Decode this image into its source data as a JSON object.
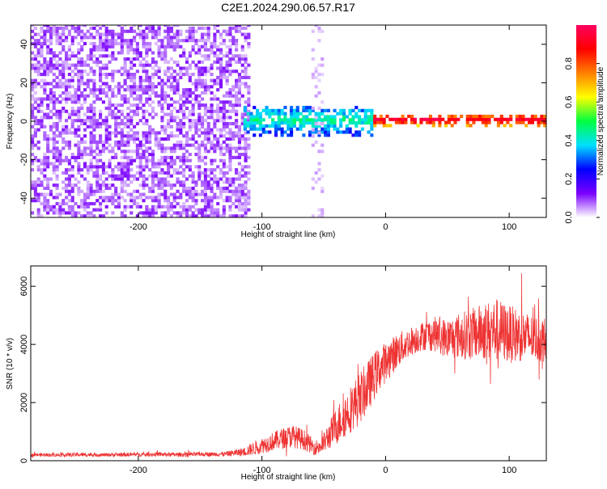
{
  "title": "C2E1.2024.290.06.57.R17",
  "chart_data": [
    {
      "type": "heatmap",
      "xlabel": "Height of straight line (km)",
      "ylabel": "Frequency (Hz)",
      "xlim": [
        -287,
        130
      ],
      "ylim": [
        -50,
        50
      ],
      "x_ticks": [
        -200,
        -100,
        0,
        100
      ],
      "x_tick_labels": [
        "-200",
        "-100",
        "0",
        "100"
      ],
      "y_ticks": [
        -40,
        -20,
        0,
        20,
        40
      ],
      "y_tick_labels": [
        "-40",
        "-20",
        "0",
        "20",
        "40"
      ],
      "colorbar": {
        "label": "Normalized spectral amplitude",
        "range": [
          0,
          1
        ],
        "ticks": [
          0.0,
          0.2,
          0.4,
          0.6,
          0.8
        ],
        "tick_labels": [
          "0.0",
          "0.2",
          "0.4",
          "0.6",
          "0.8"
        ],
        "colors": [
          "#ffffff",
          "#7a00ff",
          "#0000ff",
          "#00e0ff",
          "#00ff40",
          "#ffff00",
          "#ff8000",
          "#ff0000",
          "#ff0060"
        ]
      },
      "regions": [
        {
          "x_range": [
            -287,
            -110
          ],
          "f_range": [
            -50,
            50
          ],
          "amplitude": [
            0.03,
            0.12
          ],
          "pattern": "broadband noise"
        },
        {
          "x_range": [
            -115,
            -10
          ],
          "f_center": 0,
          "f_width": 8,
          "amplitude": [
            0.25,
            0.45
          ],
          "pattern": "signal onset band"
        },
        {
          "x_range": [
            -10,
            130
          ],
          "f_center": 0,
          "f_width": 3,
          "amplitude": [
            0.7,
            0.95
          ],
          "pattern": "narrow carrier line"
        },
        {
          "x_range": [
            -60,
            -50
          ],
          "f_range": [
            -50,
            50
          ],
          "amplitude": [
            0.02,
            0.05
          ],
          "pattern": "faint vertical stripe"
        }
      ]
    },
    {
      "type": "line",
      "xlabel": "Height of straight line (km)",
      "ylabel": "SNR (10 * v/v)",
      "xlim": [
        -287,
        130
      ],
      "ylim": [
        0,
        6700
      ],
      "x_ticks": [
        -200,
        -100,
        0,
        100
      ],
      "x_tick_labels": [
        "-200",
        "-100",
        "0",
        "100"
      ],
      "y_ticks": [
        0,
        2000,
        4000,
        6000
      ],
      "y_tick_labels": [
        "0",
        "2000",
        "4000",
        "6000"
      ],
      "color": "#ee3333",
      "series": [
        {
          "x": [
            -287,
            -270,
            -250,
            -230,
            -210,
            -190,
            -170,
            -150,
            -130,
            -115,
            -105,
            -95,
            -85,
            -75,
            -65,
            -58,
            -52,
            -45,
            -38,
            -30,
            -22,
            -15,
            -8,
            0,
            10,
            20,
            30,
            40,
            50,
            60,
            70,
            80,
            90,
            100,
            110,
            120,
            130
          ],
          "y": [
            200,
            200,
            210,
            200,
            210,
            220,
            210,
            220,
            230,
            300,
            450,
            600,
            750,
            850,
            700,
            450,
            500,
            900,
            1300,
            1700,
            2100,
            2500,
            3000,
            3400,
            3800,
            4100,
            4300,
            4350,
            4200,
            4300,
            4350,
            4450,
            4500,
            4350,
            4300,
            4200,
            4150
          ],
          "noise_amplitude": [
            60,
            60,
            70,
            60,
            70,
            70,
            70,
            70,
            80,
            150,
            250,
            300,
            350,
            400,
            350,
            250,
            300,
            500,
            700,
            800,
            900,
            900,
            800,
            700,
            600,
            500,
            500,
            600,
            700,
            800,
            900,
            1000,
            1100,
            1000,
            900,
            800,
            800
          ]
        }
      ]
    }
  ]
}
